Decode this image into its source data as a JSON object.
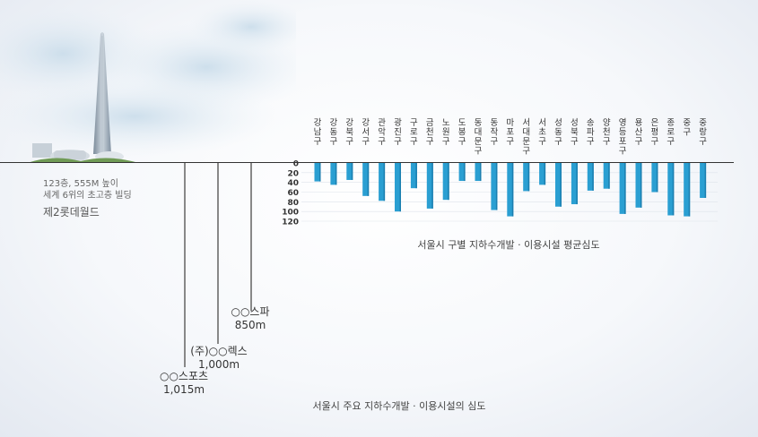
{
  "building": {
    "line1": "123층, 555M 높이",
    "line2": "세계 6위의 초고층 빌딩",
    "name": "제2롯데월드"
  },
  "drills": [
    {
      "name": "○○스포츠",
      "depth": "1,015m"
    },
    {
      "name": "(주)○○렉스",
      "depth": "1,000m"
    },
    {
      "name": "○○스파",
      "depth": "850m"
    }
  ],
  "figure_caption": "서울시 주요 지하수개발 · 이용시설의 심도",
  "colors": {
    "bar": "#2a9fd2",
    "bar_dark": "#1b7fb0",
    "drill_line": "#888888",
    "ground": "#333333"
  },
  "chart_data": {
    "type": "bar",
    "title": "서울시 구별 지하수개발 · 이용시설 평균심도",
    "orientation": "downward",
    "categories": [
      "강남구",
      "강동구",
      "강북구",
      "강서구",
      "관악구",
      "광진구",
      "구로구",
      "금천구",
      "노원구",
      "도봉구",
      "동대문구",
      "동작구",
      "마포구",
      "서대문구",
      "서초구",
      "성동구",
      "성북구",
      "송파구",
      "양천구",
      "영등포구",
      "용산구",
      "은평구",
      "종로구",
      "중구",
      "중랑구"
    ],
    "values": [
      38,
      45,
      35,
      68,
      78,
      100,
      52,
      94,
      76,
      37,
      37,
      97,
      110,
      58,
      45,
      90,
      85,
      57,
      53,
      105,
      92,
      60,
      108,
      110,
      72
    ],
    "yticks": [
      "0",
      "20",
      "40",
      "60",
      "80",
      "100",
      "120"
    ],
    "ylim": [
      0,
      120
    ],
    "grid": false
  }
}
